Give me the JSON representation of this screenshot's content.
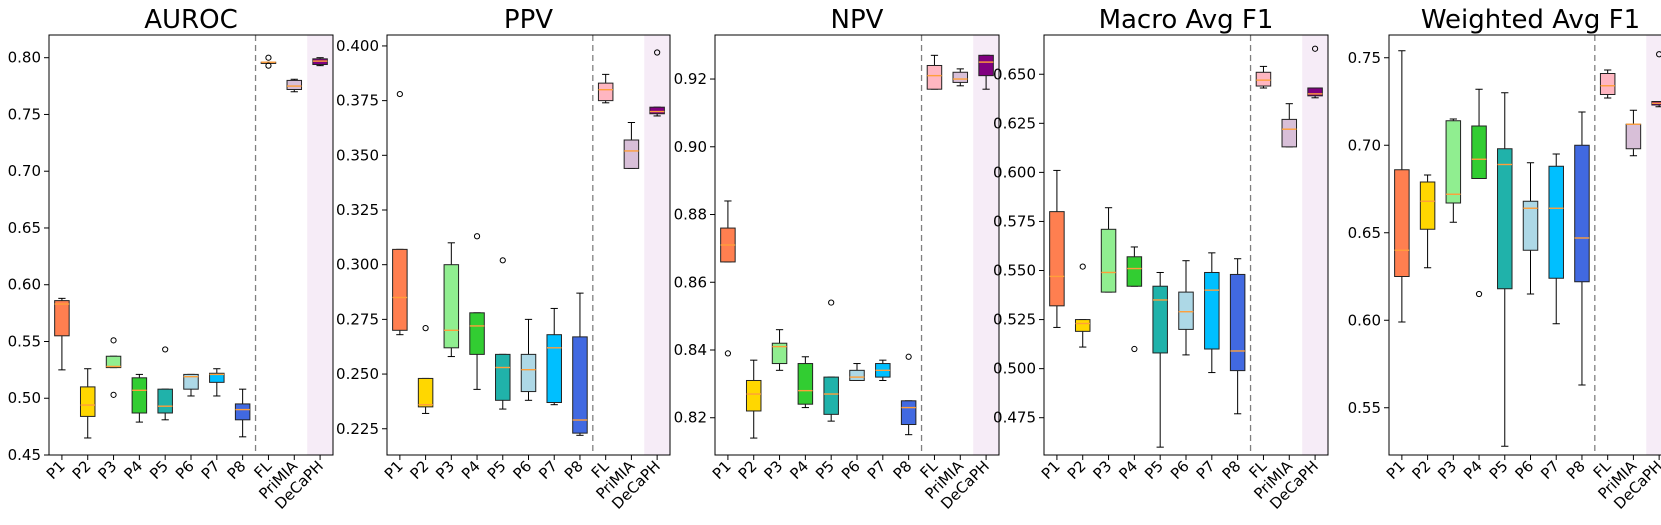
{
  "chart_data": [
    {
      "type": "box",
      "title": "AUROC",
      "categories": [
        "P1",
        "P2",
        "P3",
        "P4",
        "P5",
        "P6",
        "P7",
        "P8",
        "FL",
        "PriMIA",
        "DeCaPH"
      ],
      "ylim": [
        0.45,
        0.82
      ],
      "yticks": [
        "0.45",
        "0.50",
        "0.55",
        "0.60",
        "0.65",
        "0.70",
        "0.75",
        "0.80"
      ],
      "ytick_values": [
        0.45,
        0.5,
        0.55,
        0.6,
        0.65,
        0.7,
        0.75,
        0.8
      ],
      "divider_after": "P8",
      "highlight": "DeCaPH",
      "boxes": [
        {
          "low": 0.525,
          "q1": 0.555,
          "median": 0.583,
          "q3": 0.586,
          "high": 0.588,
          "fliers": []
        },
        {
          "low": 0.465,
          "q1": 0.484,
          "median": 0.494,
          "q3": 0.51,
          "high": 0.526,
          "fliers": []
        },
        {
          "low": 0.527,
          "q1": 0.527,
          "median": 0.528,
          "q3": 0.537,
          "high": 0.537,
          "fliers": [
            0.551,
            0.503
          ]
        },
        {
          "low": 0.479,
          "q1": 0.487,
          "median": 0.507,
          "q3": 0.518,
          "high": 0.521,
          "fliers": []
        },
        {
          "low": 0.481,
          "q1": 0.487,
          "median": 0.493,
          "q3": 0.508,
          "high": 0.508,
          "fliers": [
            0.543
          ]
        },
        {
          "low": 0.502,
          "q1": 0.508,
          "median": 0.519,
          "q3": 0.521,
          "high": 0.521,
          "fliers": []
        },
        {
          "low": 0.502,
          "q1": 0.514,
          "median": 0.521,
          "q3": 0.522,
          "high": 0.526,
          "fliers": []
        },
        {
          "low": 0.466,
          "q1": 0.481,
          "median": 0.49,
          "q3": 0.495,
          "high": 0.508,
          "fliers": []
        },
        {
          "low": 0.796,
          "q1": 0.796,
          "median": 0.796,
          "q3": 0.796,
          "high": 0.796,
          "fliers": [
            0.8,
            0.793
          ]
        },
        {
          "low": 0.77,
          "q1": 0.772,
          "median": 0.775,
          "q3": 0.78,
          "high": 0.781,
          "fliers": []
        },
        {
          "low": 0.793,
          "q1": 0.794,
          "median": 0.797,
          "q3": 0.799,
          "high": 0.8,
          "fliers": []
        }
      ]
    },
    {
      "type": "box",
      "title": "PPV",
      "categories": [
        "P1",
        "P2",
        "P3",
        "P4",
        "P5",
        "P6",
        "P7",
        "P8",
        "FL",
        "PriMIA",
        "DeCaPH"
      ],
      "ylim": [
        0.213,
        0.405
      ],
      "yticks": [
        "0.225",
        "0.250",
        "0.275",
        "0.300",
        "0.325",
        "0.350",
        "0.375",
        "0.400"
      ],
      "ytick_values": [
        0.225,
        0.25,
        0.275,
        0.3,
        0.325,
        0.35,
        0.375,
        0.4
      ],
      "divider_after": "P8",
      "highlight": "DeCaPH",
      "boxes": [
        {
          "low": 0.268,
          "q1": 0.27,
          "median": 0.285,
          "q3": 0.307,
          "high": 0.307,
          "fliers": [
            0.378
          ]
        },
        {
          "low": 0.232,
          "q1": 0.235,
          "median": 0.236,
          "q3": 0.248,
          "high": 0.248,
          "fliers": [
            0.271
          ]
        },
        {
          "low": 0.258,
          "q1": 0.262,
          "median": 0.27,
          "q3": 0.3,
          "high": 0.31,
          "fliers": []
        },
        {
          "low": 0.243,
          "q1": 0.259,
          "median": 0.272,
          "q3": 0.278,
          "high": 0.278,
          "fliers": [
            0.313
          ]
        },
        {
          "low": 0.234,
          "q1": 0.238,
          "median": 0.253,
          "q3": 0.259,
          "high": 0.259,
          "fliers": [
            0.302
          ]
        },
        {
          "low": 0.238,
          "q1": 0.242,
          "median": 0.252,
          "q3": 0.259,
          "high": 0.275,
          "fliers": []
        },
        {
          "low": 0.236,
          "q1": 0.237,
          "median": 0.262,
          "q3": 0.268,
          "high": 0.28,
          "fliers": []
        },
        {
          "low": 0.222,
          "q1": 0.223,
          "median": 0.229,
          "q3": 0.267,
          "high": 0.287,
          "fliers": []
        },
        {
          "low": 0.374,
          "q1": 0.375,
          "median": 0.38,
          "q3": 0.383,
          "high": 0.387,
          "fliers": []
        },
        {
          "low": 0.344,
          "q1": 0.344,
          "median": 0.352,
          "q3": 0.357,
          "high": 0.365,
          "fliers": []
        },
        {
          "low": 0.368,
          "q1": 0.369,
          "median": 0.37,
          "q3": 0.372,
          "high": 0.372,
          "fliers": [
            0.397
          ]
        }
      ]
    },
    {
      "type": "box",
      "title": "NPV",
      "categories": [
        "P1",
        "P2",
        "P3",
        "P4",
        "P5",
        "P6",
        "P7",
        "P8",
        "FL",
        "PriMIA",
        "DeCaPH"
      ],
      "ylim": [
        0.809,
        0.933
      ],
      "yticks": [
        "0.82",
        "0.84",
        "0.86",
        "0.88",
        "0.90",
        "0.92"
      ],
      "ytick_values": [
        0.82,
        0.84,
        0.86,
        0.88,
        0.9,
        0.92
      ],
      "divider_after": "P8",
      "highlight": "DeCaPH",
      "boxes": [
        {
          "low": 0.866,
          "q1": 0.866,
          "median": 0.871,
          "q3": 0.876,
          "high": 0.884,
          "fliers": [
            0.839
          ]
        },
        {
          "low": 0.814,
          "q1": 0.822,
          "median": 0.827,
          "q3": 0.831,
          "high": 0.837,
          "fliers": []
        },
        {
          "low": 0.834,
          "q1": 0.836,
          "median": 0.841,
          "q3": 0.842,
          "high": 0.846,
          "fliers": []
        },
        {
          "low": 0.823,
          "q1": 0.824,
          "median": 0.828,
          "q3": 0.836,
          "high": 0.838,
          "fliers": []
        },
        {
          "low": 0.819,
          "q1": 0.821,
          "median": 0.827,
          "q3": 0.832,
          "high": 0.832,
          "fliers": [
            0.854
          ]
        },
        {
          "low": 0.831,
          "q1": 0.831,
          "median": 0.832,
          "q3": 0.834,
          "high": 0.836,
          "fliers": []
        },
        {
          "low": 0.831,
          "q1": 0.832,
          "median": 0.834,
          "q3": 0.836,
          "high": 0.837,
          "fliers": []
        },
        {
          "low": 0.815,
          "q1": 0.818,
          "median": 0.823,
          "q3": 0.825,
          "high": 0.825,
          "fliers": [
            0.838
          ]
        },
        {
          "low": 0.917,
          "q1": 0.917,
          "median": 0.921,
          "q3": 0.924,
          "high": 0.927,
          "fliers": []
        },
        {
          "low": 0.918,
          "q1": 0.919,
          "median": 0.92,
          "q3": 0.922,
          "high": 0.923,
          "fliers": []
        },
        {
          "low": 0.917,
          "q1": 0.921,
          "median": 0.925,
          "q3": 0.927,
          "high": 0.927,
          "fliers": []
        }
      ]
    },
    {
      "type": "box",
      "title": "Macro Avg F1",
      "categories": [
        "P1",
        "P2",
        "P3",
        "P4",
        "P5",
        "P6",
        "P7",
        "P8",
        "FL",
        "PriMIA",
        "DeCaPH"
      ],
      "ylim": [
        0.456,
        0.67
      ],
      "yticks": [
        "0.475",
        "0.500",
        "0.525",
        "0.550",
        "0.575",
        "0.600",
        "0.625",
        "0.650"
      ],
      "ytick_values": [
        0.475,
        0.5,
        0.525,
        0.55,
        0.575,
        0.6,
        0.625,
        0.65
      ],
      "divider_after": "P8",
      "highlight": "DeCaPH",
      "boxes": [
        {
          "low": 0.521,
          "q1": 0.532,
          "median": 0.547,
          "q3": 0.58,
          "high": 0.601,
          "fliers": []
        },
        {
          "low": 0.511,
          "q1": 0.519,
          "median": 0.523,
          "q3": 0.525,
          "high": 0.525,
          "fliers": [
            0.552
          ]
        },
        {
          "low": 0.539,
          "q1": 0.539,
          "median": 0.549,
          "q3": 0.571,
          "high": 0.582,
          "fliers": []
        },
        {
          "low": 0.542,
          "q1": 0.542,
          "median": 0.551,
          "q3": 0.557,
          "high": 0.562,
          "fliers": [
            0.51
          ]
        },
        {
          "low": 0.46,
          "q1": 0.508,
          "median": 0.535,
          "q3": 0.542,
          "high": 0.549,
          "fliers": []
        },
        {
          "low": 0.507,
          "q1": 0.52,
          "median": 0.529,
          "q3": 0.539,
          "high": 0.555,
          "fliers": []
        },
        {
          "low": 0.498,
          "q1": 0.51,
          "median": 0.54,
          "q3": 0.549,
          "high": 0.559,
          "fliers": []
        },
        {
          "low": 0.477,
          "q1": 0.499,
          "median": 0.509,
          "q3": 0.548,
          "high": 0.556,
          "fliers": []
        },
        {
          "low": 0.643,
          "q1": 0.644,
          "median": 0.647,
          "q3": 0.651,
          "high": 0.654,
          "fliers": []
        },
        {
          "low": 0.613,
          "q1": 0.613,
          "median": 0.622,
          "q3": 0.627,
          "high": 0.635,
          "fliers": []
        },
        {
          "low": 0.638,
          "q1": 0.639,
          "median": 0.64,
          "q3": 0.643,
          "high": 0.643,
          "fliers": [
            0.663
          ]
        }
      ]
    },
    {
      "type": "box",
      "title": "Weighted Avg F1",
      "categories": [
        "P1",
        "P2",
        "P3",
        "P4",
        "P5",
        "P6",
        "P7",
        "P8",
        "FL",
        "PriMIA",
        "DeCaPH"
      ],
      "ylim": [
        0.523,
        0.763
      ],
      "yticks": [
        "0.55",
        "0.60",
        "0.65",
        "0.70",
        "0.75"
      ],
      "ytick_values": [
        0.55,
        0.6,
        0.65,
        0.7,
        0.75
      ],
      "divider_after": "P8",
      "highlight": "DeCaPH",
      "boxes": [
        {
          "low": 0.599,
          "q1": 0.625,
          "median": 0.64,
          "q3": 0.686,
          "high": 0.754,
          "fliers": []
        },
        {
          "low": 0.63,
          "q1": 0.652,
          "median": 0.668,
          "q3": 0.679,
          "high": 0.683,
          "fliers": []
        },
        {
          "low": 0.656,
          "q1": 0.667,
          "median": 0.672,
          "q3": 0.714,
          "high": 0.715,
          "fliers": []
        },
        {
          "low": 0.681,
          "q1": 0.681,
          "median": 0.692,
          "q3": 0.711,
          "high": 0.732,
          "fliers": [
            0.615
          ]
        },
        {
          "low": 0.528,
          "q1": 0.618,
          "median": 0.689,
          "q3": 0.698,
          "high": 0.73,
          "fliers": []
        },
        {
          "low": 0.615,
          "q1": 0.64,
          "median": 0.664,
          "q3": 0.668,
          "high": 0.69,
          "fliers": []
        },
        {
          "low": 0.598,
          "q1": 0.624,
          "median": 0.664,
          "q3": 0.688,
          "high": 0.695,
          "fliers": []
        },
        {
          "low": 0.563,
          "q1": 0.622,
          "median": 0.647,
          "q3": 0.7,
          "high": 0.719,
          "fliers": []
        },
        {
          "low": 0.727,
          "q1": 0.729,
          "median": 0.734,
          "q3": 0.741,
          "high": 0.743,
          "fliers": []
        },
        {
          "low": 0.694,
          "q1": 0.698,
          "median": 0.712,
          "q3": 0.712,
          "high": 0.72,
          "fliers": []
        },
        {
          "low": 0.722,
          "q1": 0.723,
          "median": 0.724,
          "q3": 0.725,
          "high": 0.725,
          "fliers": [
            0.752
          ]
        }
      ]
    }
  ],
  "colors": {
    "P1": "#ff7f50",
    "P2": "#ffd700",
    "P3": "#90ee90",
    "P4": "#32cd32",
    "P5": "#20b2aa",
    "P6": "#add8e6",
    "P7": "#00bfff",
    "P8": "#4169e1",
    "FL": "#ffb6c1",
    "PriMIA": "#d8bfd8",
    "DeCaPH": "#800080",
    "median": "#ff9f3a",
    "highlight_band": "#f6ecf7",
    "divider": "#808080"
  }
}
